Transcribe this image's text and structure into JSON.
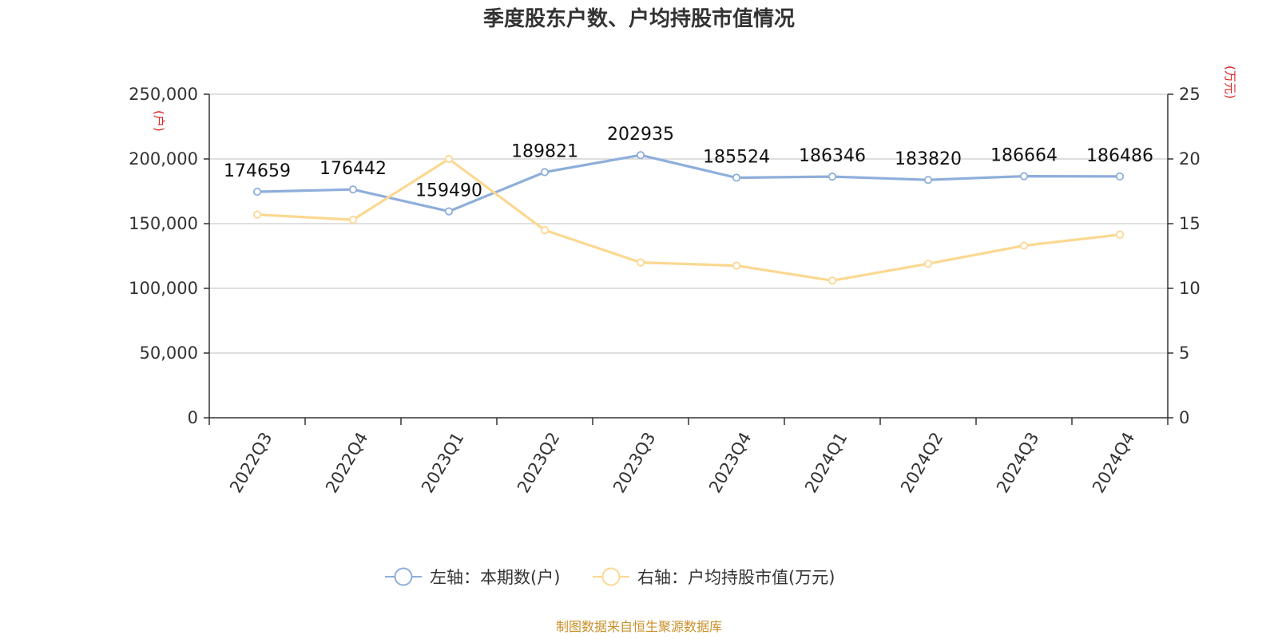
{
  "chart_data": {
    "type": "line",
    "title": "季度股东户数、户均持股市值情况",
    "categories": [
      "2022Q3",
      "2022Q4",
      "2023Q1",
      "2023Q2",
      "2023Q3",
      "2023Q4",
      "2024Q1",
      "2024Q2",
      "2024Q3",
      "2024Q4"
    ],
    "left_axis": {
      "unit": "(户)",
      "ylim": [
        0,
        250000
      ],
      "ticks": [
        "0",
        "50,000",
        "100,000",
        "150,000",
        "200,000",
        "250,000"
      ],
      "tick_values": [
        0,
        50000,
        100000,
        150000,
        200000,
        250000
      ]
    },
    "right_axis": {
      "unit": "(万元)",
      "ylim": [
        0,
        25
      ],
      "ticks": [
        "0",
        "5",
        "10",
        "15",
        "20",
        "25"
      ],
      "tick_values": [
        0,
        5,
        10,
        15,
        20,
        25
      ]
    },
    "series": [
      {
        "name": "左轴：本期数(户)",
        "axis": "left",
        "color": "#8eaedb",
        "values": [
          174659,
          176442,
          159490,
          189821,
          202935,
          185524,
          186346,
          183820,
          186664,
          186486
        ],
        "labels": [
          "174659",
          "176442",
          "159490",
          "189821",
          "202935",
          "185524",
          "186346",
          "183820",
          "186664",
          "186486"
        ]
      },
      {
        "name": "右轴：户均持股市值(万元)",
        "axis": "right",
        "color": "#fbd891",
        "values": [
          15.7,
          15.3,
          20.0,
          14.5,
          12.0,
          11.75,
          10.6,
          11.9,
          13.3,
          14.15
        ]
      }
    ],
    "grid": true,
    "legend_position": "bottom",
    "unit_color": "#e02020",
    "source_color": "#c8912b"
  },
  "source": "制图数据来自恒生聚源数据库"
}
